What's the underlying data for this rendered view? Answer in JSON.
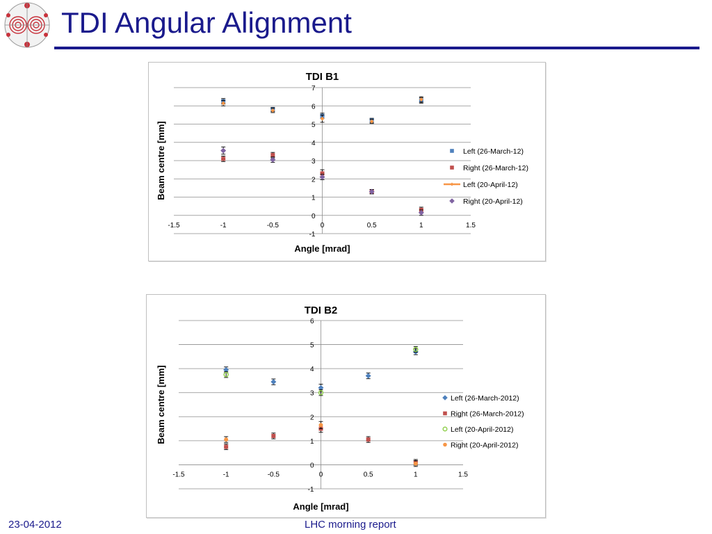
{
  "slide": {
    "title": "TDI Angular Alignment",
    "footer_date": "23-04-2012",
    "footer_center": "LHC morning report"
  },
  "colors": {
    "title": "#1a1a8c",
    "blue": "#4f81bd",
    "red": "#c0504d",
    "orange": "#f79646",
    "purple": "#8064a2",
    "green": "#92d050"
  },
  "chart_data": [
    {
      "type": "scatter",
      "title": "TDI B1",
      "xlabel": "Angle [mrad]",
      "ylabel": "Beam centre [mm]",
      "xlim": [
        -1.5,
        1.5
      ],
      "ylim": [
        -1,
        7
      ],
      "xticks": [
        "-1.5",
        "-1",
        "-0.5",
        "0",
        "0.5",
        "1",
        "1.5"
      ],
      "yticks": [
        "-1",
        "0",
        "1",
        "2",
        "3",
        "4",
        "5",
        "6",
        "7"
      ],
      "grid": "horizontal",
      "legend_position": "right",
      "series": [
        {
          "name": "Left (26-March-12)",
          "marker": "square",
          "color": "#4f81bd",
          "x": [
            -1,
            -0.5,
            0,
            0.5,
            1
          ],
          "y": [
            6.25,
            5.8,
            5.45,
            5.2,
            6.3
          ],
          "err": [
            0.15,
            0.12,
            0.15,
            0.12,
            0.15
          ]
        },
        {
          "name": "Right (26-March-12)",
          "marker": "square",
          "color": "#c0504d",
          "x": [
            -1,
            -0.5,
            0,
            0.5,
            1
          ],
          "y": [
            3.1,
            3.3,
            2.3,
            1.3,
            0.3
          ],
          "err": [
            0.15,
            0.15,
            0.2,
            0.12,
            0.15
          ]
        },
        {
          "name": "Left (20-April-12)",
          "marker": "line-diamond",
          "color": "#f79646",
          "x": [
            -1,
            -0.5,
            0,
            0.5,
            1
          ],
          "y": [
            6.15,
            5.75,
            5.3,
            5.15,
            6.35
          ],
          "err": [
            0.15,
            0.12,
            0.2,
            0.12,
            0.15
          ]
        },
        {
          "name": "Right (20-April-12)",
          "marker": "diamond",
          "color": "#8064a2",
          "x": [
            -1,
            -0.5,
            0,
            0.5,
            1
          ],
          "y": [
            3.55,
            3.05,
            2.1,
            1.3,
            0.15
          ],
          "err": [
            0.2,
            0.15,
            0.15,
            0.12,
            0.15
          ]
        }
      ]
    },
    {
      "type": "scatter",
      "title": "TDI B2",
      "xlabel": "Angle [mrad]",
      "ylabel": "Beam centre [mm]",
      "xlim": [
        -1.5,
        1.5
      ],
      "ylim": [
        -1,
        6
      ],
      "xticks": [
        "-1.5",
        "-1",
        "-0.5",
        "0",
        "0.5",
        "1",
        "1.5"
      ],
      "yticks": [
        "-1",
        "0",
        "1",
        "2",
        "3",
        "4",
        "5",
        "6"
      ],
      "grid": "horizontal",
      "legend_position": "right",
      "series": [
        {
          "name": "Left (26-March-2012)",
          "marker": "diamond",
          "color": "#4f81bd",
          "x": [
            -1,
            -0.5,
            0,
            0.5,
            1
          ],
          "y": [
            3.95,
            3.45,
            3.2,
            3.7,
            4.7
          ],
          "err": [
            0.12,
            0.12,
            0.15,
            0.12,
            0.12
          ]
        },
        {
          "name": "Right (26-March-2012)",
          "marker": "square",
          "color": "#c0504d",
          "x": [
            -1,
            -0.5,
            0,
            0.5,
            1
          ],
          "y": [
            0.75,
            1.2,
            1.5,
            1.05,
            0.1
          ],
          "err": [
            0.12,
            0.12,
            0.15,
            0.12,
            0.12
          ]
        },
        {
          "name": "Left (20-April-2012)",
          "marker": "circle-open",
          "color": "#92d050",
          "x": [
            -1,
            0,
            1
          ],
          "y": [
            3.75,
            3.0,
            4.8
          ],
          "err": [
            0.12,
            0.12,
            0.12
          ]
        },
        {
          "name": "Right (20-April-2012)",
          "marker": "circle",
          "color": "#f79646",
          "x": [
            -1,
            0,
            1
          ],
          "y": [
            1.05,
            1.65,
            0.05
          ],
          "err": [
            0.12,
            0.15,
            0.12
          ]
        }
      ]
    }
  ]
}
